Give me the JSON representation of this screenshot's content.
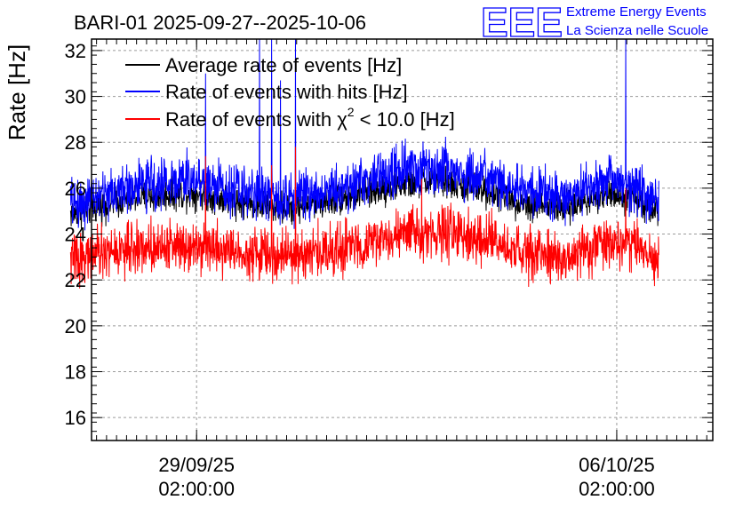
{
  "chart_data": {
    "type": "line",
    "title": "BARI-01 2025-09-27--2025-10-06",
    "xlabel": "",
    "ylabel": "Rate [Hz]",
    "ylim": [
      15,
      32.5
    ],
    "yticks": [
      16,
      18,
      20,
      22,
      24,
      26,
      28,
      30,
      32
    ],
    "xlim_days": [
      -1.75,
      8.6
    ],
    "xticks": [
      {
        "day": 0,
        "date": "29/09/25",
        "time": "02:00:00"
      },
      {
        "day": 7,
        "date": "06/10/25",
        "time": "02:00:00"
      }
    ],
    "data_range_days": [
      -2.1,
      7.7
    ],
    "legend_position": "top-left",
    "series": [
      {
        "name": "Average rate of events [Hz]",
        "color": "#000000",
        "baseline_days": [
          -2.1,
          -1.0,
          0.0,
          0.5,
          1.5,
          2.5,
          3.5,
          4.0,
          4.8,
          5.5,
          6.2,
          6.8,
          7.3,
          7.7
        ],
        "baseline_values": [
          24.9,
          25.6,
          25.8,
          25.5,
          25.1,
          25.6,
          26.2,
          26.3,
          25.9,
          25.3,
          25.1,
          25.8,
          25.6,
          25.0
        ],
        "noise_amplitude": 0.6
      },
      {
        "name": "Rate of events with hits [Hz]",
        "color": "#0000ff",
        "baseline_days": [
          -2.1,
          -1.0,
          0.0,
          0.5,
          1.5,
          2.5,
          3.5,
          4.0,
          4.8,
          5.5,
          6.2,
          6.8,
          7.3,
          7.7
        ],
        "baseline_values": [
          25.3,
          26.1,
          26.4,
          26.0,
          25.6,
          26.1,
          26.8,
          26.9,
          26.4,
          25.8,
          25.6,
          26.4,
          26.1,
          25.4
        ],
        "noise_amplitude": 0.95,
        "spikes": [
          {
            "day": 0.15,
            "value": 31.0
          },
          {
            "day": 1.05,
            "value": 32.5
          },
          {
            "day": 1.25,
            "value": 32.5
          },
          {
            "day": 1.4,
            "value": 30.7
          },
          {
            "day": 1.65,
            "value": 32.5
          },
          {
            "day": 7.15,
            "value": 32.5
          }
        ]
      },
      {
        "name": "Rate of events with χ² < 10.0 [Hz]",
        "color": "#ff0000",
        "baseline_days": [
          -2.1,
          -1.0,
          0.0,
          0.5,
          1.5,
          2.5,
          3.5,
          4.0,
          4.8,
          5.5,
          6.2,
          6.8,
          7.3,
          7.7
        ],
        "baseline_values": [
          22.9,
          23.4,
          23.6,
          23.3,
          23.0,
          23.4,
          24.0,
          24.1,
          23.7,
          23.1,
          22.9,
          23.7,
          23.5,
          22.8
        ],
        "noise_amplitude": 0.95,
        "spikes": [
          {
            "day": 0.15,
            "value": 27.4
          },
          {
            "day": 1.25,
            "value": 27.0
          },
          {
            "day": 1.65,
            "value": 27.8
          },
          {
            "day": 3.75,
            "value": 26.4
          },
          {
            "day": 7.15,
            "value": 26.0
          }
        ]
      }
    ]
  },
  "legend": {
    "entry1": "Average rate of events [Hz]",
    "entry2": "Rate of events with hits [Hz]",
    "entry3_prefix": "Rate of events with χ",
    "entry3_sup": "2",
    "entry3_suffix": " < 10.0 [Hz]"
  },
  "branding": {
    "logo_text": "EEE",
    "line1": "Extreme Energy Events",
    "line2": "La Scienza nelle Scuole",
    "color": "#0000ff"
  }
}
